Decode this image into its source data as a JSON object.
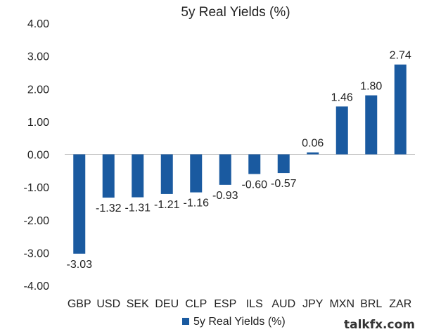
{
  "chart_data": {
    "type": "bar",
    "title": "5y Real Yields (%)",
    "categories": [
      "GBP",
      "USD",
      "SEK",
      "DEU",
      "CLP",
      "ESP",
      "ILS",
      "AUD",
      "JPY",
      "MXN",
      "BRL",
      "ZAR"
    ],
    "series": [
      {
        "name": "5y Real Yields (%)",
        "values": [
          -3.03,
          -1.32,
          -1.31,
          -1.21,
          -1.16,
          -0.93,
          -0.6,
          -0.57,
          0.06,
          1.46,
          1.8,
          2.74
        ],
        "labels": [
          "-3.03",
          "-1.32",
          "-1.31",
          "-1.21",
          "-1.16",
          "-0.93",
          "-0.60",
          "-0.57",
          "0.06",
          "1.46",
          "1.80",
          "2.74"
        ]
      }
    ],
    "yticks": [
      "4.00",
      "3.00",
      "2.00",
      "1.00",
      "0.00",
      "-1.00",
      "-2.00",
      "-3.00",
      "-4.00"
    ],
    "ylim": [
      -4,
      4
    ],
    "grid": false,
    "legend": "bottom",
    "color": "#1a5aa0"
  },
  "watermark": "talkfx.com"
}
